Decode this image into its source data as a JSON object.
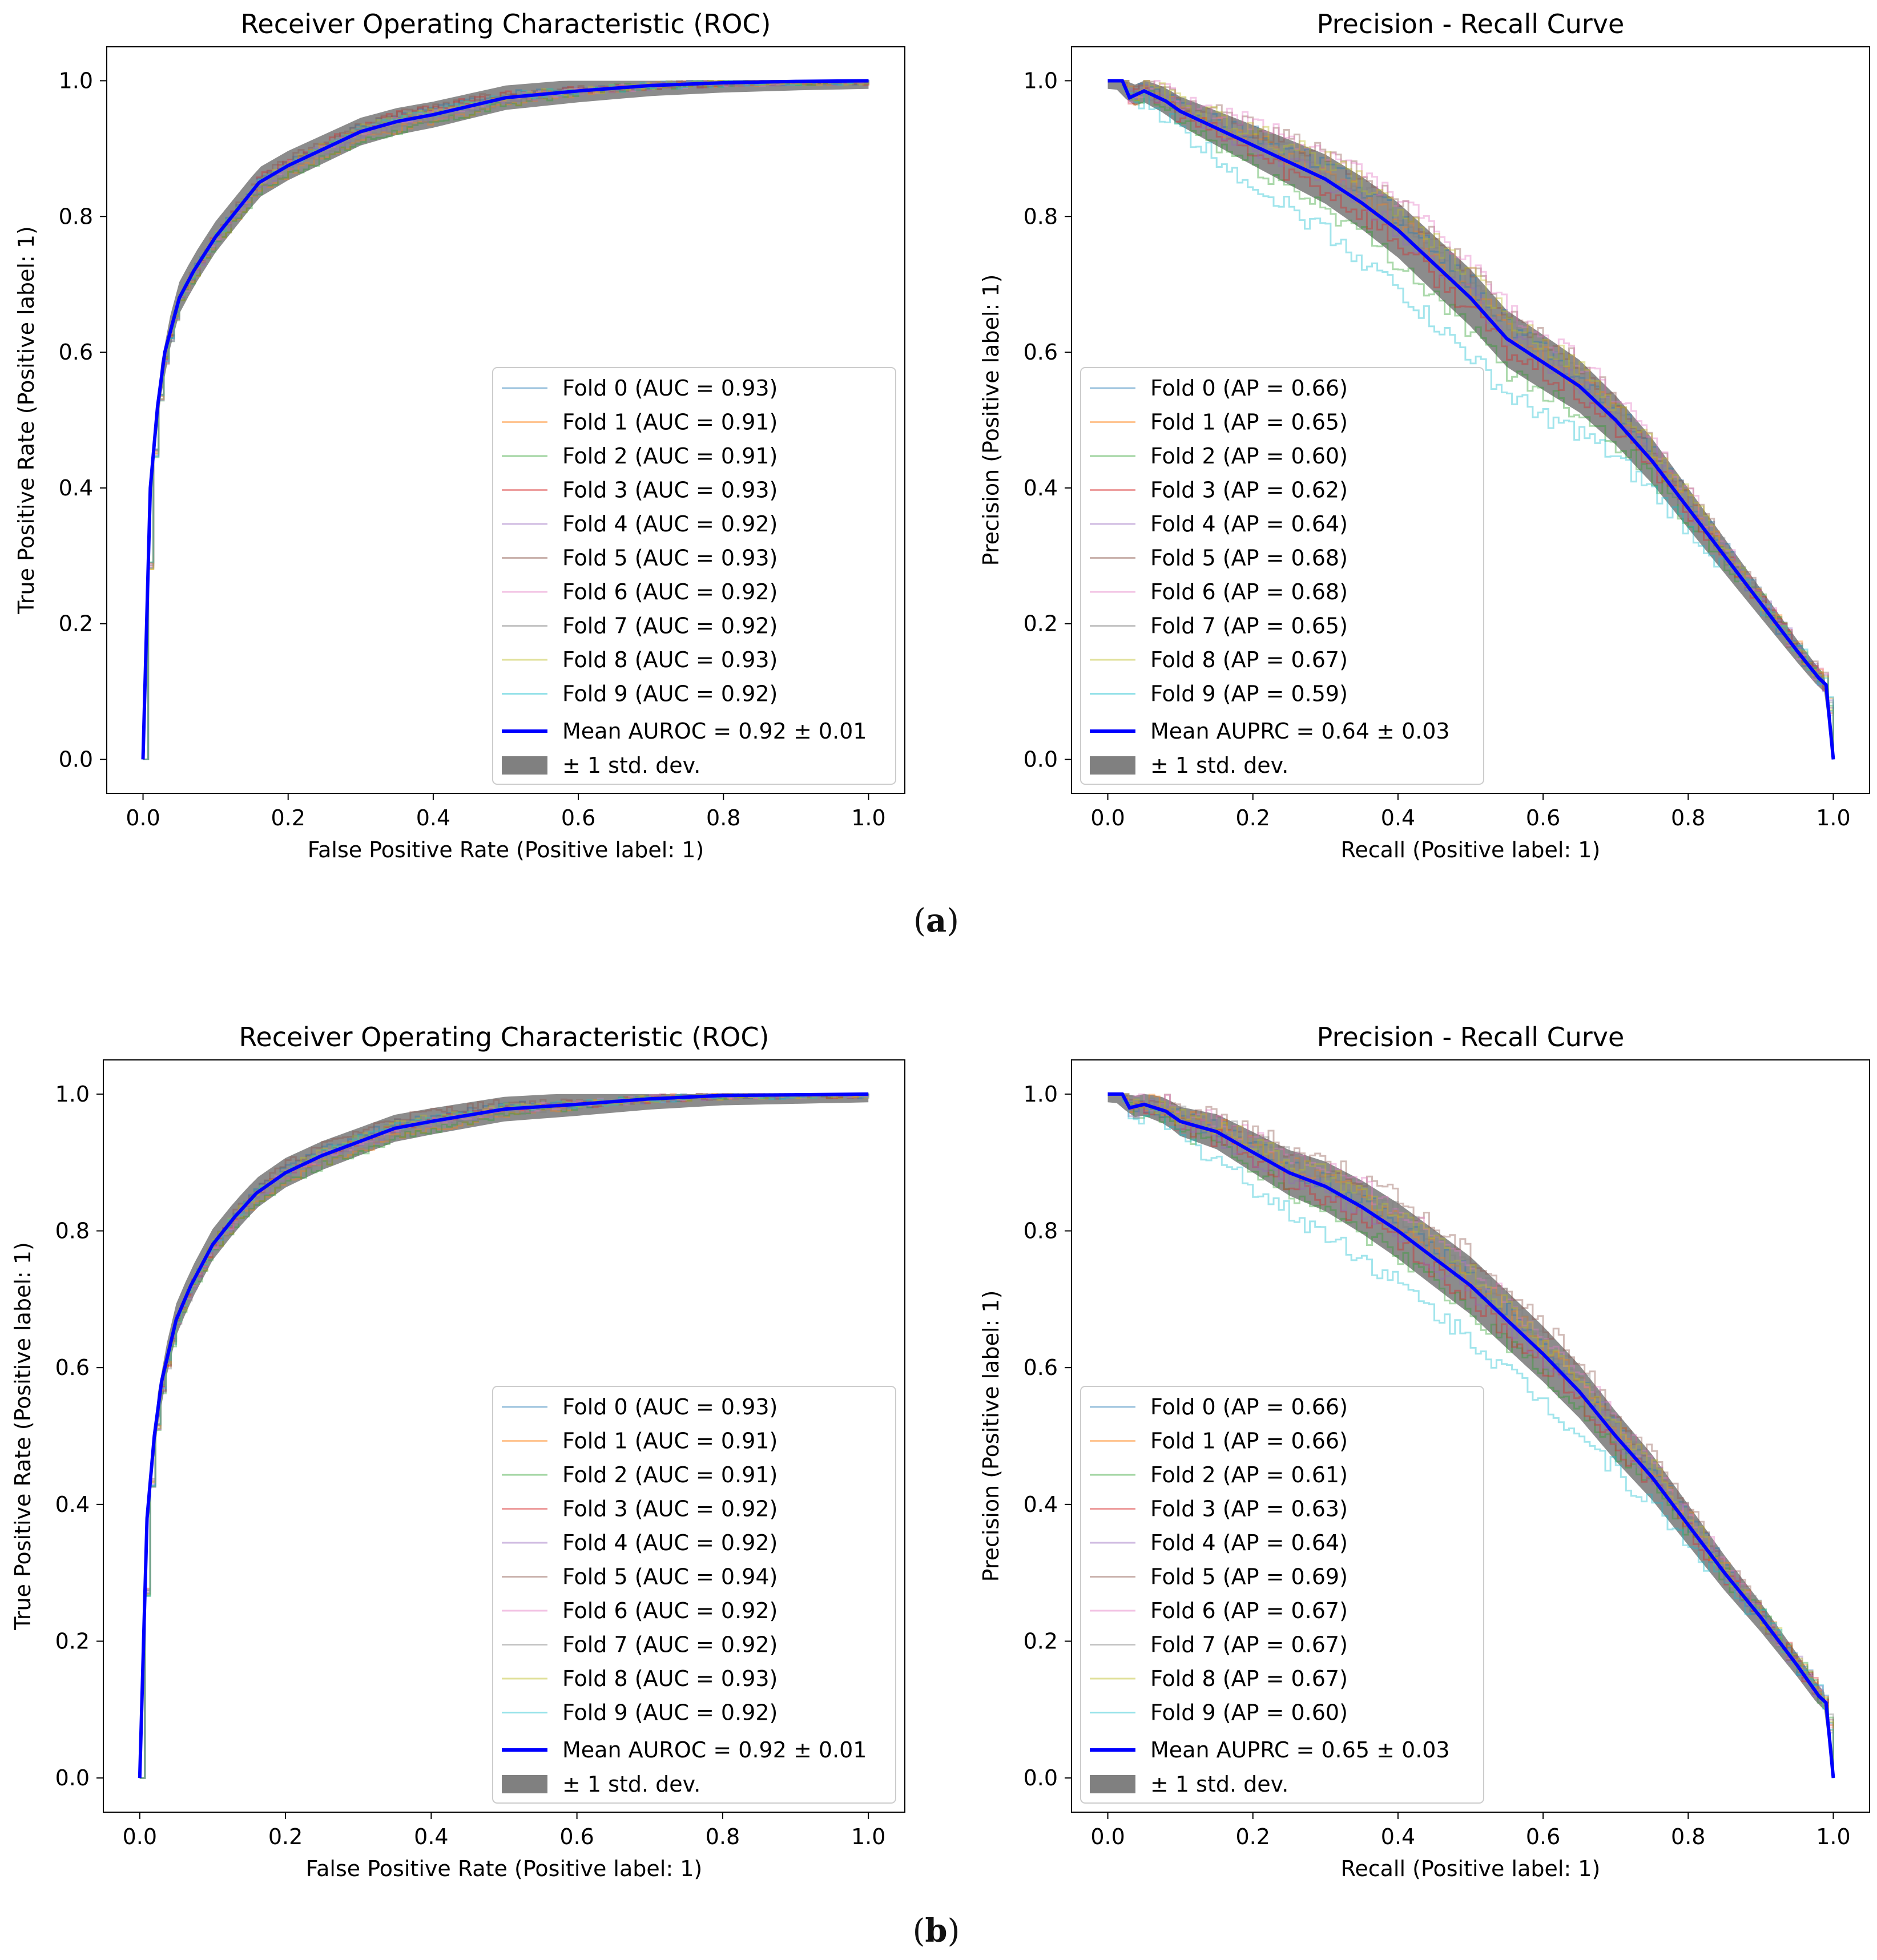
{
  "colors": {
    "folds": [
      "#1f77b4",
      "#ff7f0e",
      "#2ca02c",
      "#d62728",
      "#9467bd",
      "#8c564b",
      "#e377c2",
      "#7f7f7f",
      "#bcbd22",
      "#17becf"
    ],
    "mean": "#0000ff",
    "band": "#808080",
    "axis": "#000000",
    "legend_border": "#cccccc"
  },
  "panels": [
    {
      "open": "(",
      "label": "a",
      "close": ")"
    },
    {
      "open": "(",
      "label": "b",
      "close": ")"
    }
  ],
  "chart_data": [
    {
      "id": "a-roc",
      "type": "line",
      "kind": "roc",
      "title": "Receiver Operating Characteristic (ROC)",
      "xlabel": "False Positive Rate (Positive label: 1)",
      "ylabel": "True Positive Rate (Positive label: 1)",
      "xlim": [
        -0.05,
        1.05
      ],
      "ylim": [
        -0.05,
        1.05
      ],
      "xticks": [
        "0.0",
        "0.2",
        "0.4",
        "0.6",
        "0.8",
        "1.0"
      ],
      "yticks": [
        "0.0",
        "0.2",
        "0.4",
        "0.6",
        "0.8",
        "1.0"
      ],
      "grid": false,
      "legend_position": "lower-right",
      "mean": {
        "x": [
          0,
          0.01,
          0.02,
          0.03,
          0.05,
          0.07,
          0.1,
          0.13,
          0.16,
          0.2,
          0.25,
          0.3,
          0.35,
          0.4,
          0.5,
          0.6,
          0.7,
          0.8,
          0.9,
          1.0
        ],
        "y": [
          0,
          0.4,
          0.52,
          0.6,
          0.68,
          0.72,
          0.77,
          0.81,
          0.85,
          0.875,
          0.9,
          0.925,
          0.94,
          0.95,
          0.975,
          0.985,
          0.993,
          0.997,
          0.999,
          1.0
        ]
      },
      "band_halfwidth": 0.012,
      "series": [
        {
          "name": "Fold 0 (AUC = 0.93)",
          "offset": 0.008
        },
        {
          "name": "Fold 1 (AUC = 0.91)",
          "offset": -0.012
        },
        {
          "name": "Fold 2 (AUC = 0.91)",
          "offset": -0.014
        },
        {
          "name": "Fold 3 (AUC = 0.93)",
          "offset": 0.01
        },
        {
          "name": "Fold 4 (AUC = 0.92)",
          "offset": -0.004
        },
        {
          "name": "Fold 5 (AUC = 0.93)",
          "offset": 0.012
        },
        {
          "name": "Fold 6 (AUC = 0.92)",
          "offset": 0.002
        },
        {
          "name": "Fold 7 (AUC = 0.92)",
          "offset": -0.006
        },
        {
          "name": "Fold 8 (AUC = 0.93)",
          "offset": 0.006
        },
        {
          "name": "Fold 9 (AUC = 0.92)",
          "offset": 0.004
        }
      ],
      "mean_label": "Mean AUROC = 0.92 ± 0.01",
      "band_label": "± 1 std. dev."
    },
    {
      "id": "a-pr",
      "type": "line",
      "kind": "pr",
      "title": "Precision - Recall Curve",
      "xlabel": "Recall (Positive label: 1)",
      "ylabel": "Precision (Positive label: 1)",
      "xlim": [
        -0.05,
        1.05
      ],
      "ylim": [
        -0.05,
        1.05
      ],
      "xticks": [
        "0.0",
        "0.2",
        "0.4",
        "0.6",
        "0.8",
        "1.0"
      ],
      "yticks": [
        "0.0",
        "0.2",
        "0.4",
        "0.6",
        "0.8",
        "1.0"
      ],
      "grid": false,
      "legend_position": "lower-left",
      "mean": {
        "x": [
          0,
          0.02,
          0.03,
          0.05,
          0.08,
          0.1,
          0.15,
          0.2,
          0.25,
          0.3,
          0.35,
          0.4,
          0.45,
          0.5,
          0.55,
          0.6,
          0.65,
          0.7,
          0.75,
          0.8,
          0.85,
          0.9,
          0.95,
          0.98,
          0.99,
          1.0
        ],
        "y": [
          1.0,
          1.0,
          0.975,
          0.985,
          0.97,
          0.955,
          0.93,
          0.905,
          0.88,
          0.855,
          0.82,
          0.78,
          0.73,
          0.68,
          0.62,
          0.585,
          0.55,
          0.5,
          0.44,
          0.37,
          0.3,
          0.23,
          0.16,
          0.12,
          0.11,
          0.0
        ]
      },
      "band_halfwidth": 0.03,
      "series": [
        {
          "name": "Fold 0 (AP = 0.66)",
          "offset": 0.02
        },
        {
          "name": "Fold 1 (AP = 0.65)",
          "offset": 0.01
        },
        {
          "name": "Fold 2 (AP = 0.60)",
          "offset": -0.05
        },
        {
          "name": "Fold 3 (AP = 0.62)",
          "offset": -0.02
        },
        {
          "name": "Fold 4 (AP = 0.64)",
          "offset": 0.0
        },
        {
          "name": "Fold 5 (AP = 0.68)",
          "offset": 0.04
        },
        {
          "name": "Fold 6 (AP = 0.68)",
          "offset": 0.045
        },
        {
          "name": "Fold 7 (AP = 0.65)",
          "offset": 0.015
        },
        {
          "name": "Fold 8 (AP = 0.67)",
          "offset": 0.03
        },
        {
          "name": "Fold 9 (AP = 0.59)",
          "offset": -0.09
        }
      ],
      "mean_label": "Mean AUPRC = 0.64 ± 0.03",
      "band_label": "± 1 std. dev."
    },
    {
      "id": "b-roc",
      "type": "line",
      "kind": "roc",
      "title": "Receiver Operating Characteristic (ROC)",
      "xlabel": "False Positive Rate (Positive label: 1)",
      "ylabel": "True Positive Rate (Positive label: 1)",
      "xlim": [
        -0.05,
        1.05
      ],
      "ylim": [
        -0.05,
        1.05
      ],
      "xticks": [
        "0.0",
        "0.2",
        "0.4",
        "0.6",
        "0.8",
        "1.0"
      ],
      "yticks": [
        "0.0",
        "0.2",
        "0.4",
        "0.6",
        "0.8",
        "1.0"
      ],
      "grid": false,
      "legend_position": "lower-right",
      "mean": {
        "x": [
          0,
          0.01,
          0.02,
          0.03,
          0.05,
          0.07,
          0.1,
          0.13,
          0.16,
          0.2,
          0.25,
          0.3,
          0.35,
          0.4,
          0.5,
          0.6,
          0.7,
          0.8,
          0.9,
          1.0
        ],
        "y": [
          0,
          0.38,
          0.5,
          0.58,
          0.67,
          0.72,
          0.78,
          0.82,
          0.855,
          0.885,
          0.91,
          0.93,
          0.95,
          0.96,
          0.978,
          0.985,
          0.993,
          0.998,
          0.999,
          1.0
        ]
      },
      "band_halfwidth": 0.012,
      "series": [
        {
          "name": "Fold 0 (AUC = 0.93)",
          "offset": 0.008
        },
        {
          "name": "Fold 1 (AUC = 0.91)",
          "offset": -0.012
        },
        {
          "name": "Fold 2 (AUC = 0.91)",
          "offset": -0.014
        },
        {
          "name": "Fold 3 (AUC = 0.92)",
          "offset": 0.002
        },
        {
          "name": "Fold 4 (AUC = 0.92)",
          "offset": -0.004
        },
        {
          "name": "Fold 5 (AUC = 0.94)",
          "offset": 0.016
        },
        {
          "name": "Fold 6 (AUC = 0.92)",
          "offset": 0.0
        },
        {
          "name": "Fold 7 (AUC = 0.92)",
          "offset": -0.006
        },
        {
          "name": "Fold 8 (AUC = 0.93)",
          "offset": 0.006
        },
        {
          "name": "Fold 9 (AUC = 0.92)",
          "offset": 0.004
        }
      ],
      "mean_label": "Mean AUROC = 0.92 ± 0.01",
      "band_label": "± 1 std. dev."
    },
    {
      "id": "b-pr",
      "type": "line",
      "kind": "pr",
      "title": "Precision - Recall Curve",
      "xlabel": "Recall (Positive label: 1)",
      "ylabel": "Precision (Positive label: 1)",
      "xlim": [
        -0.05,
        1.05
      ],
      "ylim": [
        -0.05,
        1.05
      ],
      "xticks": [
        "0.0",
        "0.2",
        "0.4",
        "0.6",
        "0.8",
        "1.0"
      ],
      "yticks": [
        "0.0",
        "0.2",
        "0.4",
        "0.6",
        "0.8",
        "1.0"
      ],
      "grid": false,
      "legend_position": "lower-left",
      "mean": {
        "x": [
          0,
          0.02,
          0.03,
          0.05,
          0.08,
          0.1,
          0.15,
          0.2,
          0.25,
          0.3,
          0.35,
          0.4,
          0.45,
          0.5,
          0.55,
          0.6,
          0.65,
          0.7,
          0.75,
          0.8,
          0.85,
          0.9,
          0.95,
          0.98,
          0.99,
          1.0
        ],
        "y": [
          1.0,
          1.0,
          0.98,
          0.985,
          0.975,
          0.96,
          0.945,
          0.915,
          0.885,
          0.865,
          0.835,
          0.8,
          0.76,
          0.72,
          0.67,
          0.62,
          0.565,
          0.5,
          0.44,
          0.37,
          0.3,
          0.235,
          0.165,
          0.12,
          0.11,
          0.0
        ]
      },
      "band_halfwidth": 0.03,
      "series": [
        {
          "name": "Fold 0 (AP = 0.66)",
          "offset": 0.01
        },
        {
          "name": "Fold 1 (AP = 0.66)",
          "offset": 0.012
        },
        {
          "name": "Fold 2 (AP = 0.61)",
          "offset": -0.04
        },
        {
          "name": "Fold 3 (AP = 0.63)",
          "offset": -0.02
        },
        {
          "name": "Fold 4 (AP = 0.64)",
          "offset": -0.01
        },
        {
          "name": "Fold 5 (AP = 0.69)",
          "offset": 0.045
        },
        {
          "name": "Fold 6 (AP = 0.67)",
          "offset": 0.03
        },
        {
          "name": "Fold 7 (AP = 0.67)",
          "offset": 0.025
        },
        {
          "name": "Fold 8 (AP = 0.67)",
          "offset": 0.02
        },
        {
          "name": "Fold 9 (AP = 0.60)",
          "offset": -0.08
        }
      ],
      "mean_label": "Mean AUPRC = 0.65 ± 0.03",
      "band_label": "± 1 std. dev."
    }
  ]
}
